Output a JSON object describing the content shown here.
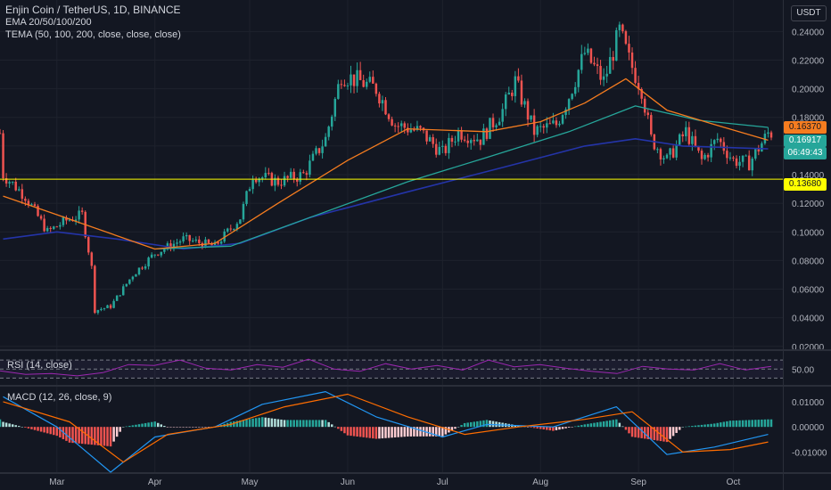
{
  "header": {
    "title": "Enjin Coin / TetherUS, 1D, BINANCE",
    "ema": "EMA 20/50/100/200",
    "tema": "TEMA (50, 100, 200, close, close, close)"
  },
  "axis": {
    "currency": "USDT"
  },
  "price_tags": {
    "last_price": "0.16917",
    "countdown": "06:49:43",
    "hline_price": "0.13680",
    "ema_value": "0.16370"
  },
  "rsi": {
    "label": "RSI (14, close)",
    "level_label": "50.00"
  },
  "macd": {
    "label": "MACD (12, 26, close, 9)",
    "ticks": [
      "0.01000",
      "0.00000",
      "-0.01000"
    ]
  },
  "colors": {
    "background": "#131722",
    "up": "#26a69a",
    "down": "#ef5350",
    "ema_orange": "#f57c1f",
    "ema_teal": "#26a69a",
    "ema_blue": "#2434a8",
    "hline": "#ffff00",
    "rsi": "#9c27b0",
    "macd_line": "#2196f3",
    "signal_line": "#ff6d00"
  },
  "chart_data": {
    "type": "candlestick",
    "title": "Enjin Coin / TetherUS, 1D, BINANCE",
    "y_ticks": [
      "0.24000",
      "0.22000",
      "0.20000",
      "0.18000",
      "0.16000",
      "0.14000",
      "0.12000",
      "0.10000",
      "0.08000",
      "0.06000",
      "0.04000",
      "0.02000"
    ],
    "ylim": [
      0.018,
      0.262
    ],
    "x_ticks": [
      "Mar",
      "Apr",
      "May",
      "Jun",
      "Jul",
      "Aug",
      "Sep",
      "Oct"
    ],
    "horizontal_line": 0.1368,
    "close_path": [
      [
        "2020-02-13",
        0.14
      ],
      [
        "2020-02-20",
        0.125
      ],
      [
        "2020-02-27",
        0.1
      ],
      [
        "2020-03-04",
        0.108
      ],
      [
        "2020-03-09",
        0.112
      ],
      [
        "2020-03-12",
        0.075
      ],
      [
        "2020-03-13",
        0.045
      ],
      [
        "2020-03-18",
        0.048
      ],
      [
        "2020-03-25",
        0.07
      ],
      [
        "2020-04-01",
        0.085
      ],
      [
        "2020-04-10",
        0.095
      ],
      [
        "2020-04-20",
        0.09
      ],
      [
        "2020-04-28",
        0.11
      ],
      [
        "2020-05-02",
        0.14
      ],
      [
        "2020-05-10",
        0.135
      ],
      [
        "2020-05-18",
        0.14
      ],
      [
        "2020-05-25",
        0.165
      ],
      [
        "2020-05-30",
        0.21
      ],
      [
        "2020-06-05",
        0.205
      ],
      [
        "2020-06-10",
        0.2
      ],
      [
        "2020-06-16",
        0.175
      ],
      [
        "2020-06-24",
        0.17
      ],
      [
        "2020-07-01",
        0.155
      ],
      [
        "2020-07-06",
        0.17
      ],
      [
        "2020-07-13",
        0.165
      ],
      [
        "2020-07-20",
        0.185
      ],
      [
        "2020-07-24",
        0.205
      ],
      [
        "2020-07-30",
        0.17
      ],
      [
        "2020-08-06",
        0.175
      ],
      [
        "2020-08-10",
        0.195
      ],
      [
        "2020-08-15",
        0.225
      ],
      [
        "2020-08-21",
        0.205
      ],
      [
        "2020-08-26",
        0.24
      ],
      [
        "2020-08-29",
        0.22
      ],
      [
        "2020-09-02",
        0.2
      ],
      [
        "2020-09-05",
        0.165
      ],
      [
        "2020-09-10",
        0.15
      ],
      [
        "2020-09-16",
        0.17
      ],
      [
        "2020-09-21",
        0.15
      ],
      [
        "2020-09-26",
        0.165
      ],
      [
        "2020-10-01",
        0.15
      ],
      [
        "2020-10-06",
        0.148
      ],
      [
        "2020-10-12",
        0.169
      ]
    ],
    "ema_orange": [
      [
        "2020-02-13",
        0.125
      ],
      [
        "2020-03-01",
        0.112
      ],
      [
        "2020-04-01",
        0.088
      ],
      [
        "2020-04-20",
        0.092
      ],
      [
        "2020-05-10",
        0.12
      ],
      [
        "2020-06-01",
        0.15
      ],
      [
        "2020-06-20",
        0.172
      ],
      [
        "2020-07-15",
        0.17
      ],
      [
        "2020-08-01",
        0.177
      ],
      [
        "2020-08-15",
        0.19
      ],
      [
        "2020-08-28",
        0.207
      ],
      [
        "2020-09-10",
        0.185
      ],
      [
        "2020-09-25",
        0.175
      ],
      [
        "2020-10-12",
        0.164
      ]
    ],
    "ema_teal": [
      [
        "2020-04-01",
        0.088
      ],
      [
        "2020-04-25",
        0.09
      ],
      [
        "2020-05-20",
        0.11
      ],
      [
        "2020-06-20",
        0.135
      ],
      [
        "2020-07-15",
        0.152
      ],
      [
        "2020-08-10",
        0.17
      ],
      [
        "2020-08-31",
        0.188
      ],
      [
        "2020-09-20",
        0.178
      ],
      [
        "2020-10-12",
        0.173
      ]
    ],
    "ema_blue": [
      [
        "2020-02-13",
        0.095
      ],
      [
        "2020-03-01",
        0.1
      ],
      [
        "2020-03-20",
        0.095
      ],
      [
        "2020-04-10",
        0.088
      ],
      [
        "2020-04-28",
        0.092
      ],
      [
        "2020-05-20",
        0.11
      ],
      [
        "2020-06-20",
        0.128
      ],
      [
        "2020-07-20",
        0.145
      ],
      [
        "2020-08-15",
        0.16
      ],
      [
        "2020-08-31",
        0.165
      ],
      [
        "2020-09-15",
        0.16
      ],
      [
        "2020-10-12",
        0.158
      ]
    ],
    "rsi": {
      "ylim": [
        15,
        90
      ],
      "bands": [
        70,
        50,
        30
      ],
      "values": [
        46,
        38,
        40,
        35,
        42,
        60,
        58,
        70,
        52,
        48,
        60,
        54,
        72,
        50,
        45,
        62,
        50,
        58,
        48,
        70,
        55,
        60,
        52,
        45,
        40,
        56,
        50,
        48,
        62,
        48,
        56
      ]
    },
    "macd_pane": {
      "ylim": [
        -0.018,
        0.016
      ],
      "macd_line": [
        [
          "2020-02-13",
          0.012
        ],
        [
          "2020-03-01",
          0.0
        ],
        [
          "2020-03-18",
          -0.018
        ],
        [
          "2020-04-01",
          -0.004
        ],
        [
          "2020-04-20",
          0.0
        ],
        [
          "2020-05-05",
          0.009
        ],
        [
          "2020-05-25",
          0.014
        ],
        [
          "2020-06-10",
          0.004
        ],
        [
          "2020-07-01",
          -0.004
        ],
        [
          "2020-07-15",
          0.001
        ],
        [
          "2020-08-05",
          0.0
        ],
        [
          "2020-08-25",
          0.008
        ],
        [
          "2020-09-10",
          -0.011
        ],
        [
          "2020-09-25",
          -0.008
        ],
        [
          "2020-10-12",
          -0.003
        ]
      ],
      "signal_line": [
        [
          "2020-02-13",
          0.01
        ],
        [
          "2020-03-05",
          0.002
        ],
        [
          "2020-03-22",
          -0.014
        ],
        [
          "2020-04-05",
          -0.003
        ],
        [
          "2020-04-25",
          0.001
        ],
        [
          "2020-05-12",
          0.008
        ],
        [
          "2020-06-01",
          0.013
        ],
        [
          "2020-06-20",
          0.004
        ],
        [
          "2020-07-08",
          -0.003
        ],
        [
          "2020-07-25",
          0.0
        ],
        [
          "2020-08-15",
          0.003
        ],
        [
          "2020-08-30",
          0.006
        ],
        [
          "2020-09-15",
          -0.01
        ],
        [
          "2020-09-30",
          -0.009
        ],
        [
          "2020-10-12",
          -0.006
        ]
      ]
    }
  }
}
